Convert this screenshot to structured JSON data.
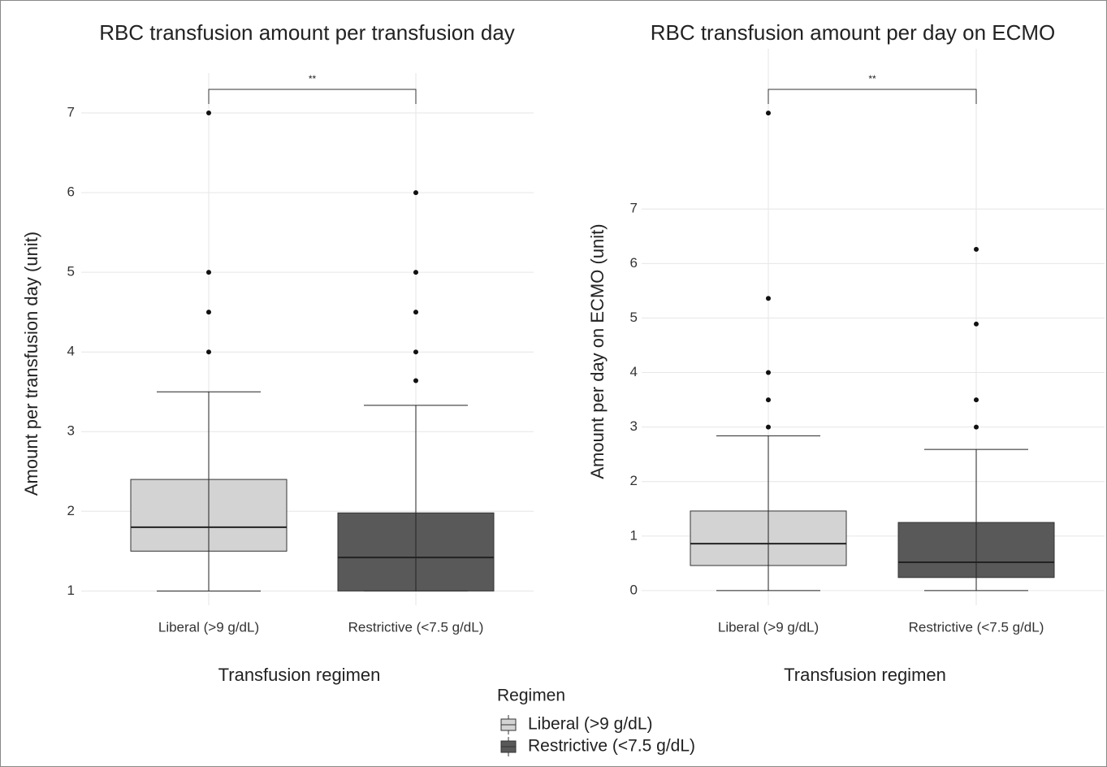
{
  "chart_data": [
    {
      "type": "box",
      "title": "RBC transfusion amount per transfusion day",
      "x_label": "Transfusion regimen",
      "y_label": "Amount per transfusion day (unit)",
      "categories": [
        "Liberal (>9 g/dL)",
        "Restrictive (<7.5 g/dL)"
      ],
      "annotation": "**",
      "grid": true,
      "ylim": [
        0.82,
        7.5
      ],
      "yticks": [
        1,
        2,
        3,
        4,
        5,
        6,
        7
      ],
      "series": [
        {
          "name": "Liberal (>9 g/dL)",
          "color": "#d3d3d3",
          "whisker_low": 1,
          "q1": 1.5,
          "median": 1.8,
          "q3": 2.4,
          "whisker_high": 3.5,
          "outliers": [
            4,
            4.5,
            5,
            7
          ]
        },
        {
          "name": "Restrictive (<7.5 g/dL)",
          "color": "#595959",
          "whisker_low": 1,
          "q1": 1,
          "median": 1.42,
          "q3": 1.98,
          "whisker_high": 3.33,
          "outliers": [
            3.64,
            4,
            4.5,
            5,
            6
          ]
        }
      ]
    },
    {
      "type": "box",
      "title": "RBC transfusion amount per day on ECMO",
      "x_label": "Transfusion regimen",
      "y_label": "Amount per day on ECMO (unit)",
      "categories": [
        "Liberal (>9 g/dL)",
        "Restrictive (<7.5 g/dL)"
      ],
      "annotation": "**",
      "grid": true,
      "ylim": [
        -0.27,
        9.94
      ],
      "yticks": [
        0,
        1,
        2,
        3,
        4,
        5,
        6,
        7
      ],
      "series": [
        {
          "name": "Liberal (>9 g/dL)",
          "color": "#d3d3d3",
          "whisker_low": 0,
          "q1": 0.46,
          "median": 0.86,
          "q3": 1.46,
          "whisker_high": 2.84,
          "outliers": [
            3,
            3.5,
            4,
            5.36,
            8.76
          ]
        },
        {
          "name": "Restrictive (<7.5 g/dL)",
          "color": "#595959",
          "whisker_low": 0,
          "q1": 0.24,
          "median": 0.52,
          "q3": 1.25,
          "whisker_high": 2.59,
          "outliers": [
            3,
            3.5,
            4.89,
            6.26
          ]
        }
      ]
    }
  ],
  "legend": {
    "title": "Regimen",
    "position": "bottom"
  }
}
